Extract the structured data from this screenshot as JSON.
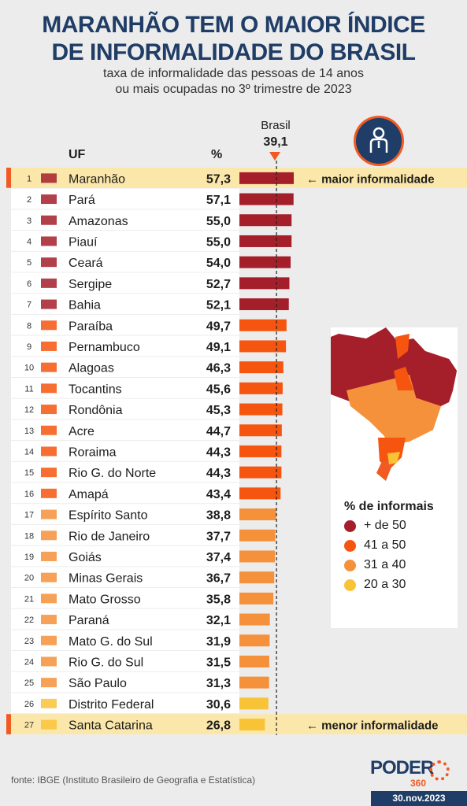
{
  "header": {
    "title_line1": "MARANHÃO TEM O MAIOR ÍNDICE",
    "title_line2": "DE INFORMALIDADE DO BRASIL",
    "subtitle_line1": "taxa de informalidade das pessoas de 14 anos",
    "subtitle_line2": "ou mais ocupadas no 3º trimestre de 2023"
  },
  "columns": {
    "uf": "UF",
    "pct": "%"
  },
  "reference": {
    "label": "Brasil",
    "value": 39.1,
    "value_text": "39,1"
  },
  "annotations": {
    "max": "← maior informalidade",
    "min": "← menor informalidade"
  },
  "colors": {
    "over50": "#a51f2b",
    "41to50": "#f6550f",
    "31to40": "#f4913a",
    "20to30": "#f9c338",
    "highlight": "#fbe7a9",
    "accent": "#f15a22",
    "navy": "#1f3d66"
  },
  "legend": {
    "title": "% de informais",
    "items": [
      {
        "label": "+ de 50",
        "color": "#a51f2b"
      },
      {
        "label": "41 a 50",
        "color": "#f6550f"
      },
      {
        "label": "31 a 40",
        "color": "#f4913a"
      },
      {
        "label": "20 a 30",
        "color": "#f9c338"
      }
    ]
  },
  "chart_data": {
    "type": "bar",
    "orientation": "horizontal",
    "xlim": [
      0,
      57.3
    ],
    "categories": [
      "Maranhão",
      "Pará",
      "Amazonas",
      "Piauí",
      "Ceará",
      "Sergipe",
      "Bahia",
      "Paraíba",
      "Pernambuco",
      "Alagoas",
      "Tocantins",
      "Rondônia",
      "Acre",
      "Roraima",
      "Rio G. do Norte",
      "Amapá",
      "Espírito Santo",
      "Rio de Janeiro",
      "Goiás",
      "Minas Gerais",
      "Mato Grosso",
      "Paraná",
      "Mato G. do Sul",
      "Rio G. do Sul",
      "São Paulo",
      "Distrito Federal",
      "Santa Catarina"
    ],
    "values": [
      57.3,
      57.1,
      55.0,
      55.0,
      54.0,
      52.7,
      52.1,
      49.7,
      49.1,
      46.3,
      45.6,
      45.3,
      44.7,
      44.3,
      44.3,
      43.4,
      38.8,
      37.7,
      37.4,
      36.7,
      35.8,
      32.1,
      31.9,
      31.5,
      31.3,
      30.6,
      26.8
    ],
    "value_labels": [
      "57,3",
      "57,1",
      "55,0",
      "55,0",
      "54,0",
      "52,7",
      "52,1",
      "49,7",
      "49,1",
      "46,3",
      "45,6",
      "45,3",
      "44,7",
      "44,3",
      "44,3",
      "43,4",
      "38,8",
      "37,7",
      "37,4",
      "36,7",
      "35,8",
      "32,1",
      "31,9",
      "31,5",
      "31,3",
      "30,6",
      "26,8"
    ],
    "ranks": [
      "1",
      "2",
      "3",
      "4",
      "5",
      "6",
      "7",
      "8",
      "9",
      "10",
      "11",
      "12",
      "13",
      "14",
      "15",
      "16",
      "17",
      "18",
      "19",
      "20",
      "21",
      "22",
      "23",
      "24",
      "25",
      "26",
      "27"
    ],
    "reference_line": 39.1
  },
  "footer": {
    "source": "fonte: IBGE (Instituto Brasileiro de Geografia e Estatística)",
    "logo": "PODER",
    "logo_sub": "360",
    "date": "30.nov.2023"
  }
}
